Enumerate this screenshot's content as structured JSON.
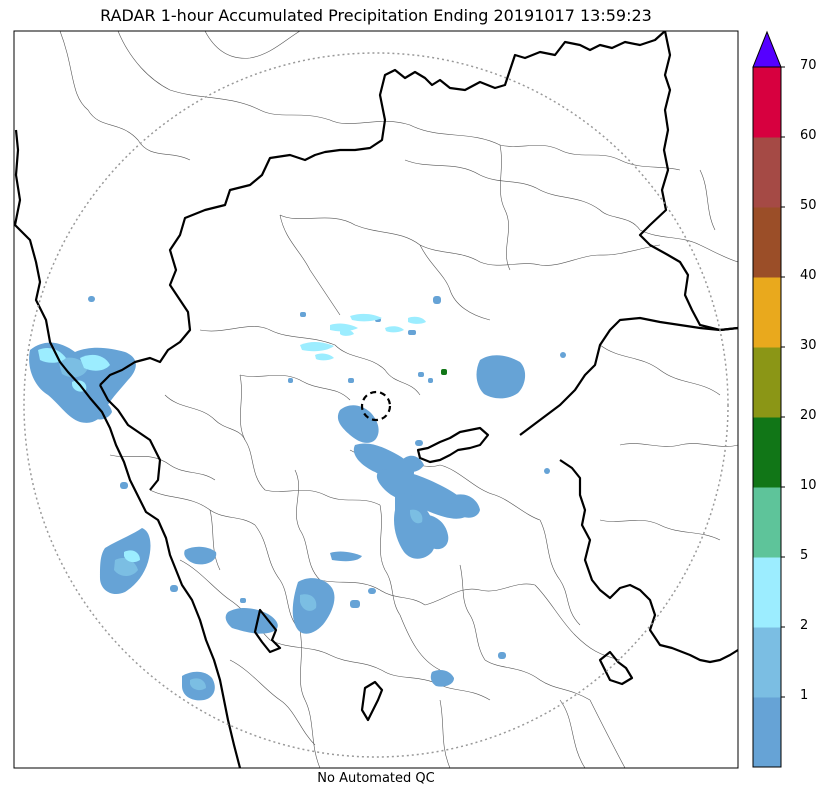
{
  "title": "RADAR 1-hour Accumulated Precipitation Ending 20191017 13:59:23",
  "footer": "No Automated QC",
  "colorbar": {
    "ticks": [
      "1",
      "2",
      "5",
      "10",
      "20",
      "30",
      "40",
      "50",
      "60",
      "70"
    ],
    "bins": [
      {
        "color": "#66a3d6"
      },
      {
        "color": "#7bbee3"
      },
      {
        "color": "#9cedff"
      },
      {
        "color": "#5ec49a"
      },
      {
        "color": "#117617"
      },
      {
        "color": "#8b9616"
      },
      {
        "color": "#e9a91d"
      },
      {
        "color": "#9b4e28"
      },
      {
        "color": "#a54a45"
      },
      {
        "color": "#d7003f"
      }
    ],
    "extend_color": "#5500ff"
  },
  "colors": {
    "rain_light": "#66a3d6",
    "rain_mid": "#7bbee3",
    "rain_cyan": "#9cedff",
    "rain_green": "#117617",
    "range_ring": "#999999",
    "border_major": "#000000",
    "border_minor": "#555555"
  }
}
